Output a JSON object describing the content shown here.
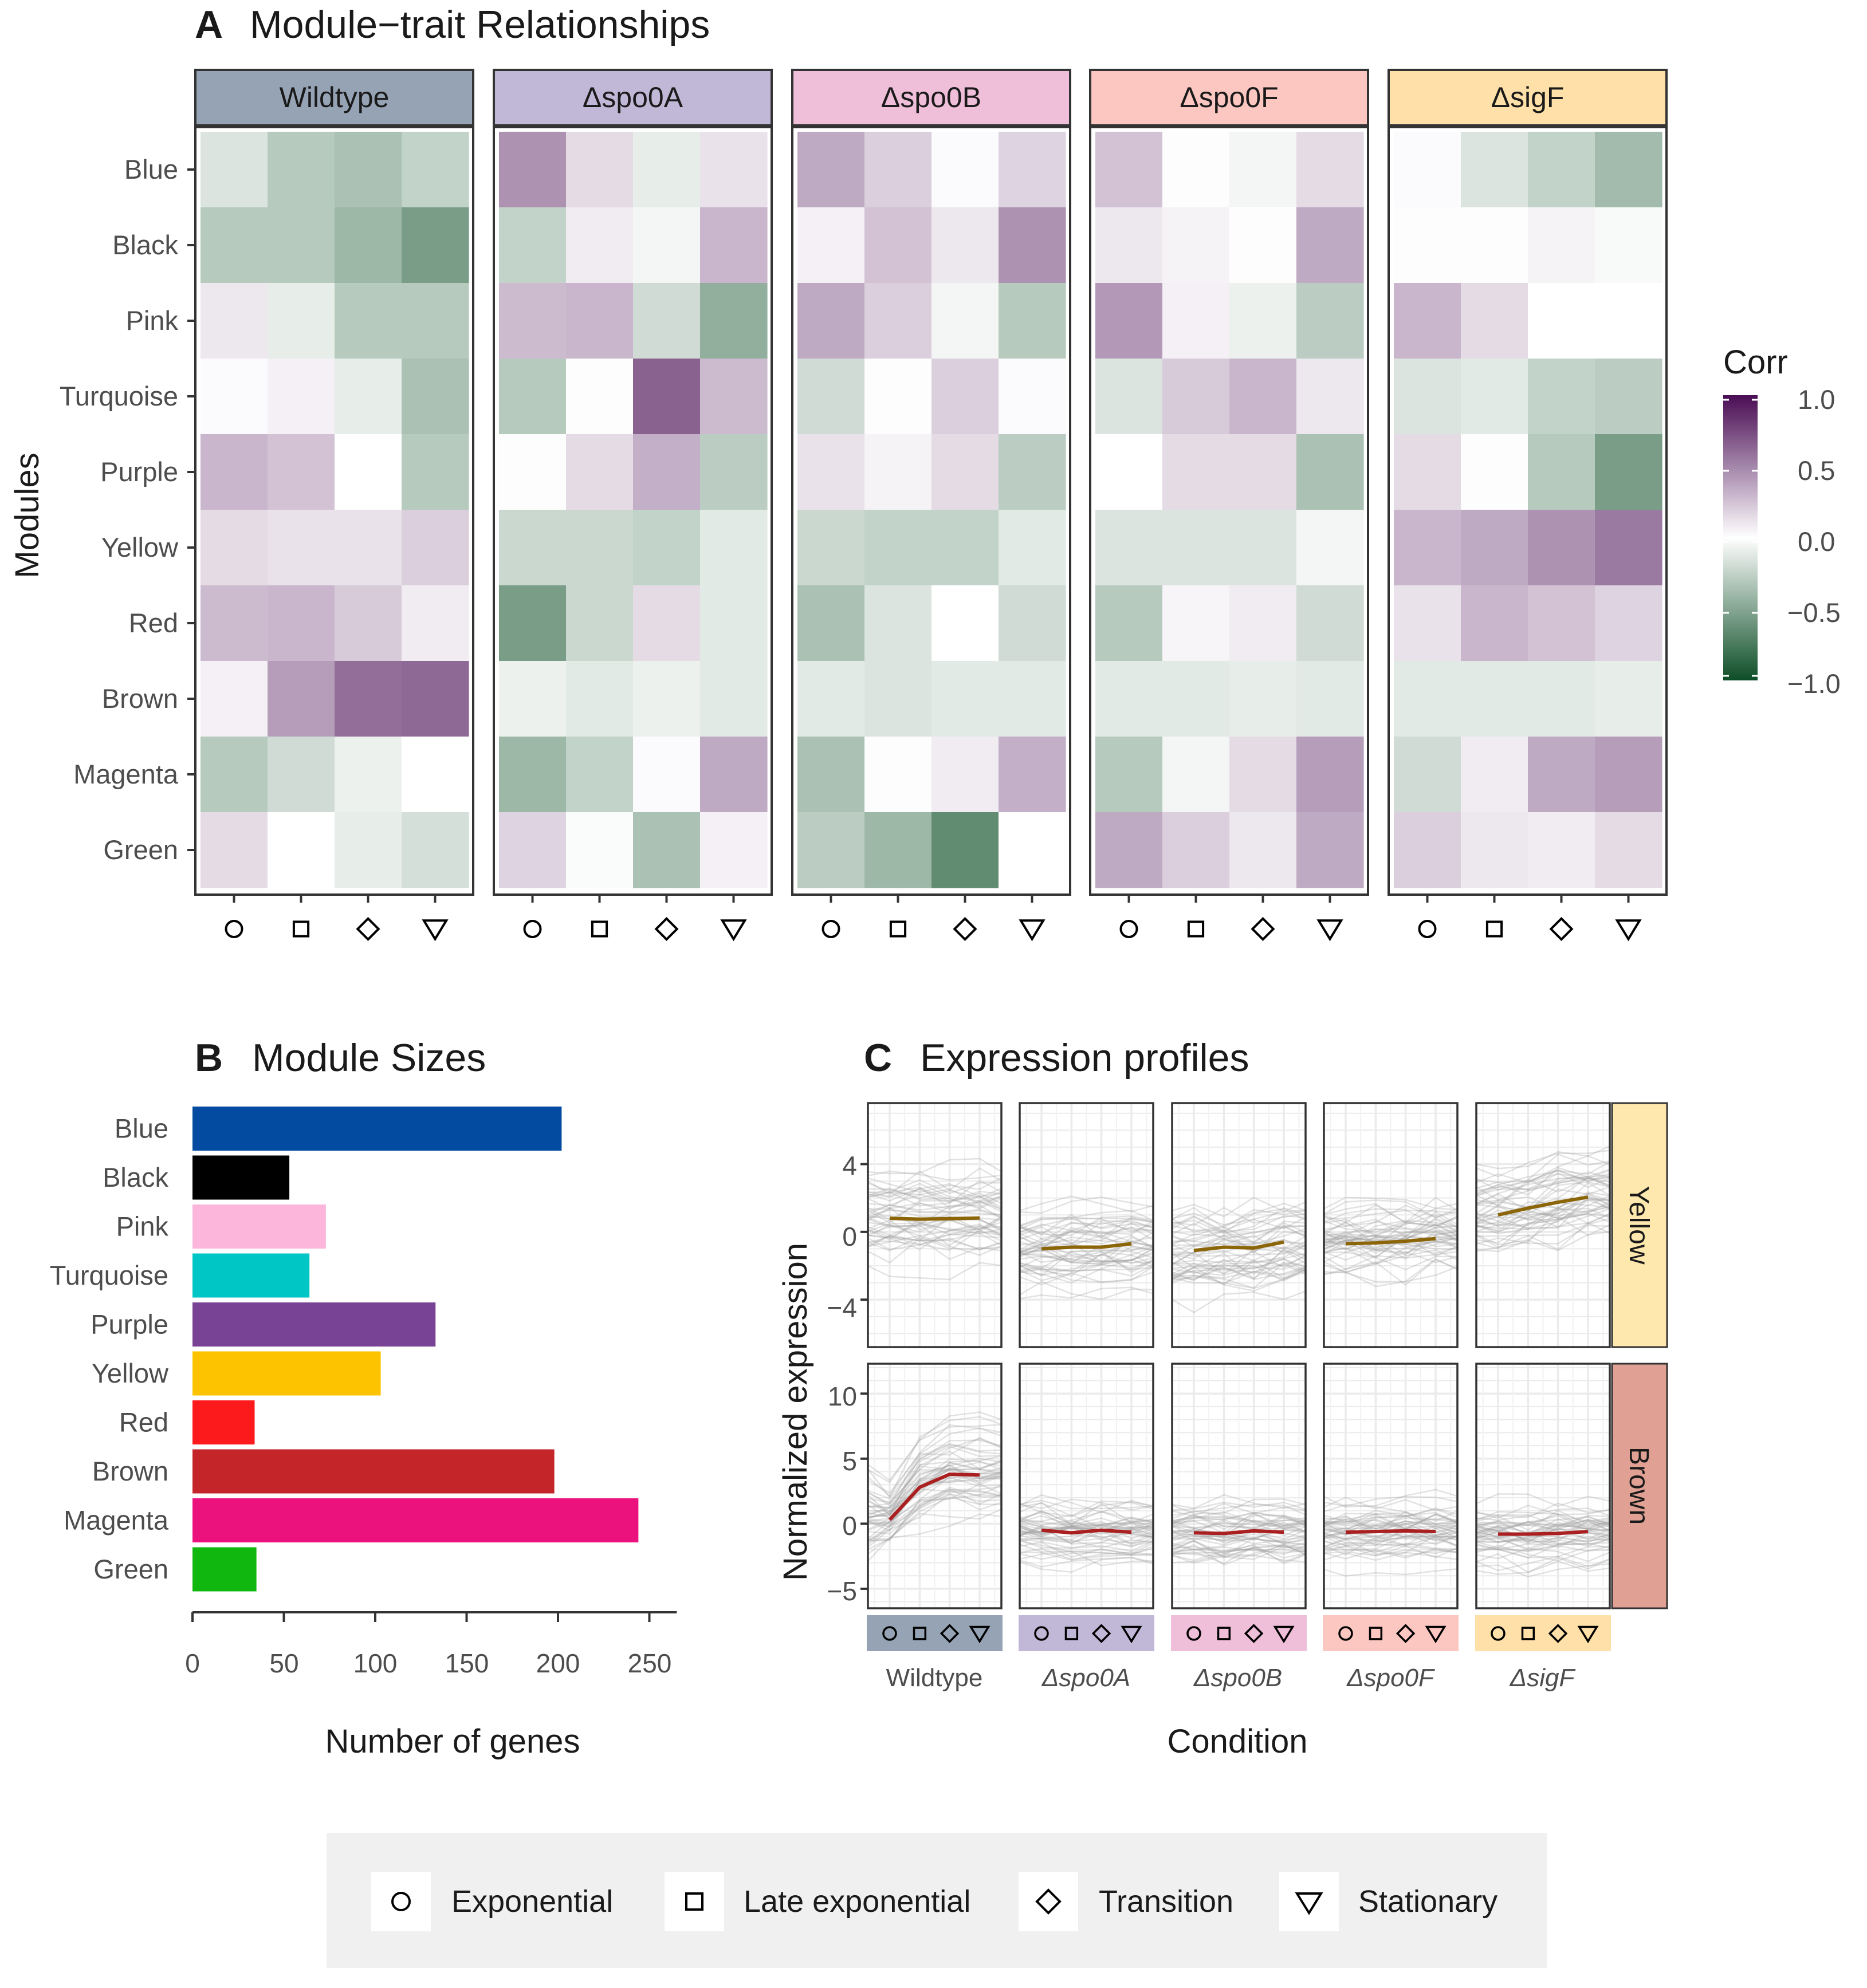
{
  "panel_a": {
    "letter": "A",
    "title": "Module−trait Relationships",
    "ylabel": "Modules",
    "legend_title": "Corr",
    "legend_ticks": [
      "1.0",
      "0.5",
      "0.0",
      "−0.5",
      "−1.0"
    ]
  },
  "panel_b": {
    "letter": "B",
    "title": "Module Sizes",
    "xlabel": "Number of genes",
    "ticks": [
      "0",
      "50",
      "100",
      "150",
      "200",
      "250"
    ]
  },
  "panel_c": {
    "letter": "C",
    "title": "Expression profiles",
    "xlabel": "Condition",
    "ylabel": "Normalized expression",
    "row_strips": [
      "Yellow",
      "Brown"
    ],
    "yellow_ticks": [
      "4",
      "0",
      "−4"
    ],
    "brown_ticks": [
      "10",
      "5",
      "0",
      "−5"
    ],
    "condition_labels": [
      "Wildtype",
      "Δspo0A",
      "Δspo0B",
      "Δspo0F",
      "ΔsigF"
    ]
  },
  "legend": {
    "items": [
      "Exponential",
      "Late exponential",
      "Transition",
      "Stationary"
    ]
  },
  "chart_data": [
    {
      "type": "heatmap",
      "id": "module-trait",
      "title": "Module−trait Relationships",
      "ylabel": "Modules",
      "strains": [
        "Wildtype",
        "Δspo0A",
        "Δspo0B",
        "Δspo0F",
        "ΔsigF"
      ],
      "strain_colors": [
        "#95a3b5",
        "#c1b8d8",
        "#efbed9",
        "#fcc7c1",
        "#fee0a8"
      ],
      "modules": [
        "Blue",
        "Black",
        "Pink",
        "Turquoise",
        "Purple",
        "Yellow",
        "Red",
        "Brown",
        "Magenta",
        "Green"
      ],
      "phases": [
        "Exponential",
        "Late exponential",
        "Transition",
        "Stationary"
      ],
      "color_scale": {
        "low": "#00441b",
        "mid": "#ffffff",
        "high": "#40004b",
        "range": [
          -1,
          1
        ]
      },
      "values": [
        [
          [
            -0.15,
            -0.3,
            -0.35,
            -0.25
          ],
          [
            -0.3,
            -0.3,
            -0.4,
            -0.55
          ],
          [
            0.1,
            -0.1,
            -0.3,
            -0.3
          ],
          [
            0.02,
            0.06,
            -0.1,
            -0.35
          ],
          [
            0.3,
            0.25,
            0.0,
            -0.3
          ],
          [
            0.15,
            0.12,
            0.12,
            0.2
          ],
          [
            0.28,
            0.3,
            0.22,
            0.08
          ],
          [
            0.06,
            0.4,
            0.6,
            0.62
          ],
          [
            -0.3,
            -0.2,
            -0.08,
            0.0
          ],
          [
            0.15,
            0.0,
            -0.1,
            -0.18
          ]
        ],
        [
          [
            0.45,
            0.15,
            -0.1,
            0.12
          ],
          [
            -0.25,
            0.08,
            -0.05,
            0.3
          ],
          [
            0.28,
            0.3,
            -0.2,
            -0.45
          ],
          [
            -0.3,
            0.01,
            0.65,
            0.28
          ],
          [
            0.01,
            0.15,
            0.33,
            -0.28
          ],
          [
            -0.22,
            -0.22,
            -0.25,
            -0.12
          ],
          [
            -0.55,
            -0.22,
            0.15,
            -0.12
          ],
          [
            -0.08,
            -0.12,
            -0.08,
            -0.12
          ],
          [
            -0.4,
            -0.25,
            0.02,
            0.35
          ],
          [
            0.18,
            -0.02,
            -0.35,
            0.06
          ]
        ],
        [
          [
            0.35,
            0.2,
            0.02,
            0.18
          ],
          [
            0.06,
            0.25,
            0.1,
            0.45
          ],
          [
            0.35,
            0.2,
            -0.05,
            -0.3
          ],
          [
            -0.2,
            0.01,
            0.2,
            0.02
          ],
          [
            0.12,
            0.05,
            0.15,
            -0.28
          ],
          [
            -0.22,
            -0.25,
            -0.25,
            -0.12
          ],
          [
            -0.35,
            -0.15,
            0.0,
            -0.2
          ],
          [
            -0.12,
            -0.15,
            -0.12,
            -0.12
          ],
          [
            -0.35,
            -0.01,
            0.08,
            0.33
          ],
          [
            -0.28,
            -0.4,
            -0.65,
            0.0
          ]
        ],
        [
          [
            0.25,
            0.01,
            -0.05,
            0.15
          ],
          [
            0.1,
            0.05,
            0.01,
            0.35
          ],
          [
            0.42,
            0.06,
            -0.08,
            -0.28
          ],
          [
            -0.15,
            0.22,
            0.3,
            0.1
          ],
          [
            0.0,
            0.15,
            0.15,
            -0.35
          ],
          [
            -0.15,
            -0.15,
            -0.15,
            -0.05
          ],
          [
            -0.3,
            0.04,
            0.08,
            -0.2
          ],
          [
            -0.12,
            -0.12,
            -0.1,
            -0.12
          ],
          [
            -0.3,
            -0.05,
            0.15,
            0.4
          ],
          [
            0.35,
            0.2,
            0.1,
            0.35
          ]
        ],
        [
          [
            0.02,
            -0.15,
            -0.25,
            -0.38
          ],
          [
            -0.01,
            0.01,
            0.05,
            -0.03
          ],
          [
            0.3,
            0.15,
            0.0,
            0.0
          ],
          [
            -0.15,
            -0.12,
            -0.25,
            -0.28
          ],
          [
            0.15,
            0.01,
            -0.3,
            -0.55
          ],
          [
            0.3,
            0.35,
            0.45,
            0.55
          ],
          [
            0.12,
            0.3,
            0.25,
            0.18
          ],
          [
            -0.12,
            -0.12,
            -0.12,
            -0.1
          ],
          [
            -0.2,
            0.08,
            0.35,
            0.4
          ],
          [
            0.2,
            0.1,
            0.08,
            0.15
          ]
        ]
      ]
    },
    {
      "type": "bar",
      "id": "module-sizes",
      "orientation": "horizontal",
      "title": "Module Sizes",
      "xlabel": "Number of genes",
      "xlim": [
        0,
        265
      ],
      "categories": [
        "Blue",
        "Black",
        "Pink",
        "Turquoise",
        "Purple",
        "Yellow",
        "Red",
        "Brown",
        "Magenta",
        "Green"
      ],
      "values": [
        202,
        53,
        73,
        64,
        133,
        103,
        34,
        198,
        244,
        35
      ],
      "colors": [
        "#024ba0",
        "#000000",
        "#fcb6dc",
        "#00c6c5",
        "#784395",
        "#fdc301",
        "#fd1a1d",
        "#c42528",
        "#ec127e",
        "#10b70e"
      ]
    },
    {
      "type": "line",
      "id": "expression-profiles",
      "title": "Expression profiles",
      "xlabel": "Condition",
      "ylabel": "Normalized expression",
      "strains": [
        "Wildtype",
        "Δspo0A",
        "Δspo0B",
        "Δspo0F",
        "ΔsigF"
      ],
      "strain_colors": [
        "#95a3b5",
        "#c1b8d8",
        "#efbed9",
        "#fcc7c1",
        "#fee0a8"
      ],
      "phases": [
        "Exponential",
        "Late exponential",
        "Transition",
        "Stationary"
      ],
      "rows": [
        {
          "module": "Yellow",
          "strip_color": "#ffe8ae",
          "line_color": "#8b6508",
          "ylim": [
            -6.8,
            7.6
          ],
          "yticks": [
            -4,
            0,
            4
          ],
          "mean": [
            [
              0.8,
              0.75,
              0.78,
              0.82
            ],
            [
              -1.0,
              -0.9,
              -0.9,
              -0.7
            ],
            [
              -1.1,
              -0.9,
              -0.95,
              -0.6
            ],
            [
              -0.7,
              -0.65,
              -0.55,
              -0.4
            ],
            [
              1.0,
              1.4,
              1.75,
              2.05
            ]
          ]
        },
        {
          "module": "Brown",
          "strip_color": "#e0a093",
          "line_color": "#aa1f20",
          "ylim": [
            -6.5,
            12.3
          ],
          "yticks": [
            -5,
            0,
            5,
            10
          ],
          "mean": [
            [
              0.3,
              2.8,
              3.8,
              3.75
            ],
            [
              -0.5,
              -0.7,
              -0.5,
              -0.65
            ],
            [
              -0.7,
              -0.75,
              -0.55,
              -0.65
            ],
            [
              -0.65,
              -0.6,
              -0.55,
              -0.6
            ],
            [
              -0.8,
              -0.8,
              -0.75,
              -0.6
            ]
          ]
        }
      ]
    }
  ]
}
